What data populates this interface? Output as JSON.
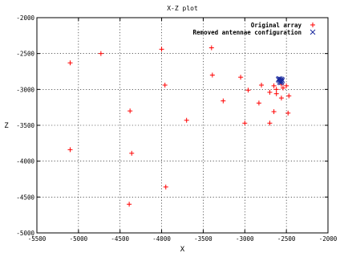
{
  "chart_data": {
    "type": "scatter",
    "title": "X-Z plot",
    "xlabel": "X",
    "ylabel": "Z",
    "xlim": [
      -5500,
      -2000
    ],
    "ylim": [
      -5000,
      -2000
    ],
    "xticks": [
      -5500,
      -5000,
      -4500,
      -4000,
      -3500,
      -3000,
      -2500,
      -2000
    ],
    "yticks": [
      -5000,
      -4500,
      -4000,
      -3500,
      -3000,
      -2500,
      -2000
    ],
    "xtick_labels": [
      "-5500",
      "-5000",
      "-4500",
      "-4000",
      "-3500",
      "-3000",
      "-2500",
      "-2000"
    ],
    "ytick_labels": [
      "-5000",
      "-4500",
      "-4000",
      "-3500",
      "-3000",
      "-2500",
      "-2000"
    ],
    "grid": true,
    "legend_position": "top-right",
    "series": [
      {
        "name": "Original array",
        "marker": "+",
        "color": "#ff0000",
        "points": [
          [
            -5100,
            -2630
          ],
          [
            -4730,
            -2500
          ],
          [
            -4000,
            -2440
          ],
          [
            -3400,
            -2420
          ],
          [
            -3390,
            -2800
          ],
          [
            -3960,
            -2940
          ],
          [
            -3050,
            -2830
          ],
          [
            -2960,
            -3010
          ],
          [
            -2800,
            -2940
          ],
          [
            -2700,
            -3040
          ],
          [
            -2650,
            -2950
          ],
          [
            -2620,
            -3000
          ],
          [
            -2580,
            -2870
          ],
          [
            -2560,
            -2930
          ],
          [
            -2540,
            -2980
          ],
          [
            -2500,
            -2950
          ],
          [
            -2470,
            -3090
          ],
          [
            -2560,
            -3120
          ],
          [
            -2620,
            -3060
          ],
          [
            -3260,
            -3160
          ],
          [
            -3000,
            -3470
          ],
          [
            -2830,
            -3190
          ],
          [
            -2700,
            -3470
          ],
          [
            -2650,
            -3310
          ],
          [
            -2480,
            -3330
          ],
          [
            -3700,
            -3430
          ],
          [
            -4380,
            -3300
          ],
          [
            -5100,
            -3840
          ],
          [
            -4360,
            -3890
          ],
          [
            -3950,
            -4360
          ],
          [
            -4390,
            -4600
          ]
        ]
      },
      {
        "name": "Removed antennae configuration",
        "marker": "x",
        "color": "#1a2a9e",
        "points": [
          [
            -2590,
            -2850
          ],
          [
            -2575,
            -2855
          ],
          [
            -2560,
            -2860
          ],
          [
            -2585,
            -2875
          ],
          [
            -2570,
            -2880
          ],
          [
            -2555,
            -2890
          ],
          [
            -2580,
            -2900
          ],
          [
            -2565,
            -2905
          ],
          [
            -2550,
            -2870
          ],
          [
            -2595,
            -2865
          ]
        ]
      }
    ]
  }
}
